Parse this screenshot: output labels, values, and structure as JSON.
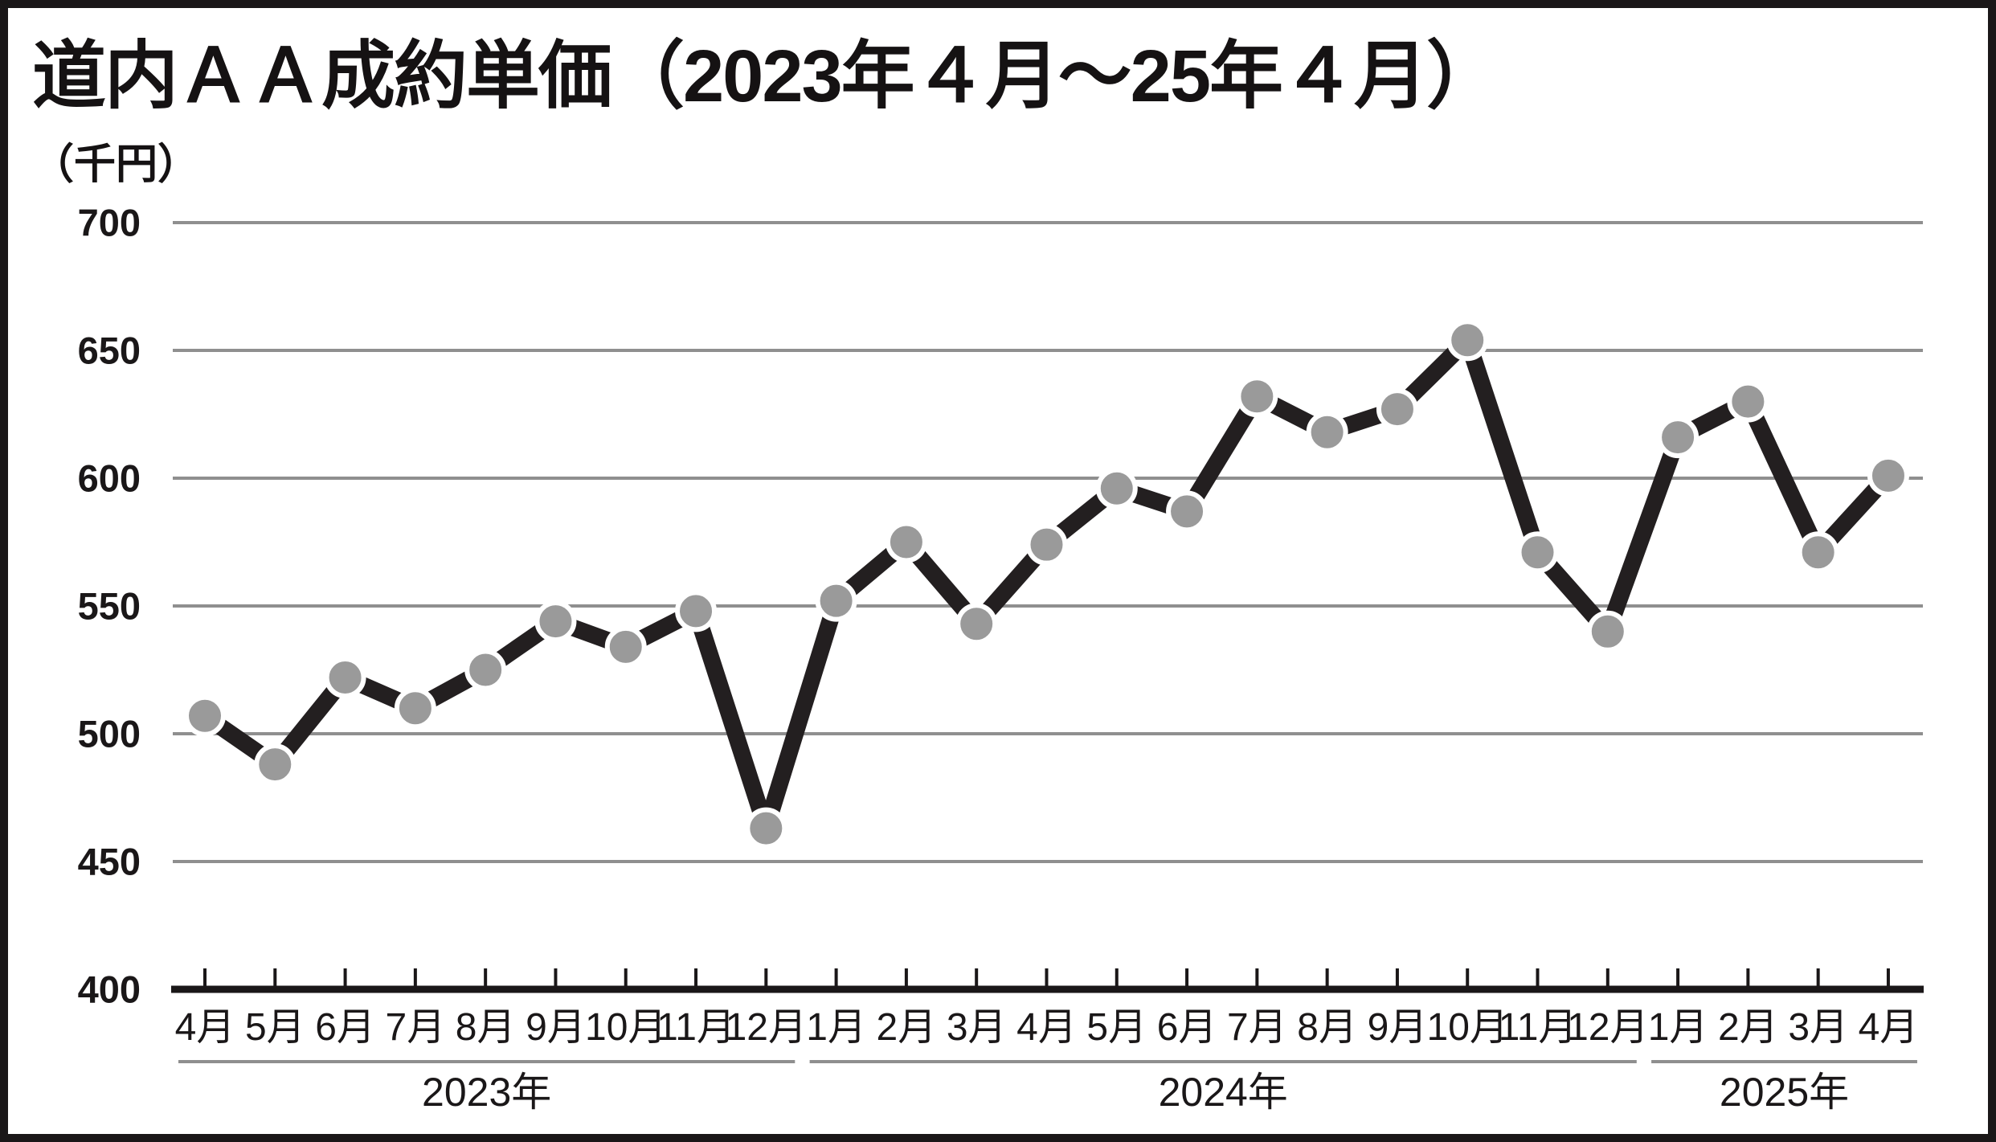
{
  "title": "道内ＡＡ成約単価（2023年４月～25年４月）",
  "chart_data": {
    "type": "line",
    "title": "道内ＡＡ成約単価（2023年４月～25年４月）",
    "unit_label": "（千円）",
    "ylabel": "千円",
    "ylim": [
      400,
      700
    ],
    "y_ticks": [
      700,
      650,
      600,
      550,
      500,
      450,
      400
    ],
    "grid": true,
    "legend_position": "none",
    "x_groups": [
      {
        "year_label": "2023年",
        "months": [
          "4月",
          "5月",
          "6月",
          "7月",
          "8月",
          "9月",
          "10月",
          "11月",
          "12月"
        ],
        "values": [
          507,
          488,
          522,
          510,
          525,
          544,
          534,
          548,
          463
        ]
      },
      {
        "year_label": "2024年",
        "months": [
          "1月",
          "2月",
          "3月",
          "4月",
          "5月",
          "6月",
          "7月",
          "8月",
          "9月",
          "10月",
          "11月",
          "12月"
        ],
        "values": [
          552,
          575,
          543,
          574,
          596,
          587,
          632,
          618,
          627,
          654,
          571,
          540
        ]
      },
      {
        "year_label": "2025年",
        "months": [
          "1月",
          "2月",
          "3月",
          "4月"
        ],
        "values": [
          616,
          630,
          571,
          601
        ]
      }
    ],
    "colors": {
      "line": "#231f20",
      "marker": "#9a9a9a",
      "marker_outline": "#ffffff",
      "grid": "#8f8f8f",
      "axis": "#1a1718",
      "text": "#1a1718"
    }
  }
}
